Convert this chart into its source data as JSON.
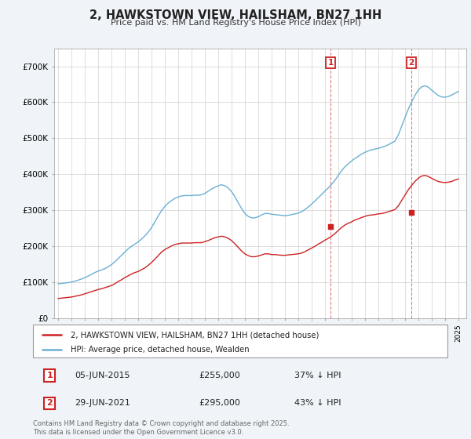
{
  "title": "2, HAWKSTOWN VIEW, HAILSHAM, BN27 1HH",
  "subtitle": "Price paid vs. HM Land Registry's House Price Index (HPI)",
  "ylim": [
    0,
    750000
  ],
  "yticks": [
    0,
    100000,
    200000,
    300000,
    400000,
    500000,
    600000,
    700000
  ],
  "ytick_labels": [
    "£0",
    "£100K",
    "£200K",
    "£300K",
    "£400K",
    "£500K",
    "£600K",
    "£700K"
  ],
  "hpi_color": "#6ab0d4",
  "price_color": "#cc2222",
  "background_color": "#f0f4f8",
  "plot_bg": "#ffffff",
  "t1_x": 2015.42,
  "t1_price": 255000,
  "t2_x": 2021.49,
  "t2_price": 295000,
  "transaction1_note": "05-JUN-2015",
  "transaction1_price_str": "£255,000",
  "transaction1_pct": "37% ↓ HPI",
  "transaction2_note": "29-JUN-2021",
  "transaction2_price_str": "£295,000",
  "transaction2_pct": "43% ↓ HPI",
  "legend_price_label": "2, HAWKSTOWN VIEW, HAILSHAM, BN27 1HH (detached house)",
  "legend_hpi_label": "HPI: Average price, detached house, Wealden",
  "footer": "Contains HM Land Registry data © Crown copyright and database right 2025.\nThis data is licensed under the Open Government Licence v3.0.",
  "hpi_x": [
    1995.0,
    1995.25,
    1995.5,
    1995.75,
    1996.0,
    1996.25,
    1996.5,
    1996.75,
    1997.0,
    1997.25,
    1997.5,
    1997.75,
    1998.0,
    1998.25,
    1998.5,
    1998.75,
    1999.0,
    1999.25,
    1999.5,
    1999.75,
    2000.0,
    2000.25,
    2000.5,
    2000.75,
    2001.0,
    2001.25,
    2001.5,
    2001.75,
    2002.0,
    2002.25,
    2002.5,
    2002.75,
    2003.0,
    2003.25,
    2003.5,
    2003.75,
    2004.0,
    2004.25,
    2004.5,
    2004.75,
    2005.0,
    2005.25,
    2005.5,
    2005.75,
    2006.0,
    2006.25,
    2006.5,
    2006.75,
    2007.0,
    2007.25,
    2007.5,
    2007.75,
    2008.0,
    2008.25,
    2008.5,
    2008.75,
    2009.0,
    2009.25,
    2009.5,
    2009.75,
    2010.0,
    2010.25,
    2010.5,
    2010.75,
    2011.0,
    2011.25,
    2011.5,
    2011.75,
    2012.0,
    2012.25,
    2012.5,
    2012.75,
    2013.0,
    2013.25,
    2013.5,
    2013.75,
    2014.0,
    2014.25,
    2014.5,
    2014.75,
    2015.0,
    2015.25,
    2015.5,
    2015.75,
    2016.0,
    2016.25,
    2016.5,
    2016.75,
    2017.0,
    2017.25,
    2017.5,
    2017.75,
    2018.0,
    2018.25,
    2018.5,
    2018.75,
    2019.0,
    2019.25,
    2019.5,
    2019.75,
    2020.0,
    2020.25,
    2020.5,
    2020.75,
    2021.0,
    2021.25,
    2021.5,
    2021.75,
    2022.0,
    2022.25,
    2022.5,
    2022.75,
    2023.0,
    2023.25,
    2023.5,
    2023.75,
    2024.0,
    2024.25,
    2024.5,
    2024.75,
    2025.0
  ],
  "hpi_y": [
    96000,
    97000,
    98000,
    99000,
    101000,
    103000,
    106000,
    109000,
    113000,
    117000,
    122000,
    127000,
    131000,
    134000,
    138000,
    143000,
    149000,
    157000,
    166000,
    175000,
    184000,
    193000,
    200000,
    206000,
    212000,
    220000,
    229000,
    239000,
    252000,
    268000,
    284000,
    299000,
    311000,
    320000,
    327000,
    333000,
    337000,
    340000,
    341000,
    341000,
    341000,
    342000,
    342000,
    343000,
    347000,
    353000,
    359000,
    364000,
    368000,
    371000,
    368000,
    362000,
    352000,
    338000,
    321000,
    305000,
    291000,
    283000,
    279000,
    279000,
    282000,
    287000,
    291000,
    291000,
    289000,
    288000,
    287000,
    286000,
    285000,
    286000,
    288000,
    290000,
    292000,
    296000,
    302000,
    309000,
    317000,
    326000,
    335000,
    344000,
    353000,
    362000,
    372000,
    383000,
    397000,
    410000,
    421000,
    429000,
    437000,
    444000,
    450000,
    456000,
    461000,
    465000,
    468000,
    470000,
    472000,
    475000,
    478000,
    482000,
    487000,
    492000,
    509000,
    533000,
    557000,
    581000,
    601000,
    619000,
    634000,
    643000,
    646000,
    642000,
    634000,
    626000,
    619000,
    615000,
    614000,
    616000,
    620000,
    625000,
    630000
  ],
  "price_y": [
    55000,
    56000,
    57000,
    58000,
    59000,
    61000,
    63000,
    65000,
    68000,
    71000,
    74000,
    77000,
    80000,
    82000,
    85000,
    88000,
    91000,
    96000,
    102000,
    107000,
    113000,
    118000,
    123000,
    127000,
    130000,
    135000,
    140000,
    147000,
    155000,
    164000,
    174000,
    184000,
    191000,
    196000,
    201000,
    205000,
    207000,
    209000,
    209000,
    209000,
    209000,
    210000,
    210000,
    210000,
    213000,
    216000,
    220000,
    224000,
    226000,
    228000,
    226000,
    222000,
    216000,
    207000,
    197000,
    187000,
    179000,
    174000,
    171000,
    171000,
    173000,
    176000,
    179000,
    179000,
    177000,
    177000,
    176000,
    175000,
    175000,
    176000,
    177000,
    178000,
    179000,
    181000,
    185000,
    190000,
    195000,
    200000,
    206000,
    211000,
    217000,
    222000,
    228000,
    235000,
    244000,
    252000,
    259000,
    264000,
    268000,
    273000,
    276000,
    280000,
    283000,
    286000,
    287000,
    288000,
    290000,
    291000,
    293000,
    296000,
    299000,
    302000,
    312000,
    327000,
    342000,
    357000,
    369000,
    380000,
    389000,
    395000,
    397000,
    394000,
    389000,
    384000,
    380000,
    378000,
    377000,
    378000,
    380000,
    384000,
    387000
  ],
  "xtick_years": [
    1995,
    1996,
    1997,
    1998,
    1999,
    2000,
    2001,
    2002,
    2003,
    2004,
    2005,
    2006,
    2007,
    2008,
    2009,
    2010,
    2011,
    2012,
    2013,
    2014,
    2015,
    2016,
    2017,
    2018,
    2019,
    2020,
    2021,
    2022,
    2023,
    2024,
    2025
  ]
}
